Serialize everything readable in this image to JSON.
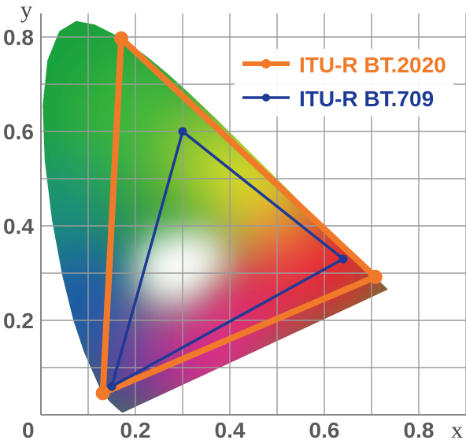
{
  "chart_data": {
    "type": "scatter",
    "xlabel": "x",
    "ylabel": "y",
    "xlim": [
      0,
      0.9
    ],
    "ylim": [
      0,
      0.85
    ],
    "grid": true,
    "origin_label": "0",
    "x_ticks": [
      {
        "value": 0.1,
        "label": ""
      },
      {
        "value": 0.2,
        "label": "0.2"
      },
      {
        "value": 0.3,
        "label": ""
      },
      {
        "value": 0.4,
        "label": "0.4"
      },
      {
        "value": 0.5,
        "label": ""
      },
      {
        "value": 0.6,
        "label": "0.6"
      },
      {
        "value": 0.7,
        "label": ""
      },
      {
        "value": 0.8,
        "label": "0.8"
      },
      {
        "value": 0.9,
        "label": ""
      }
    ],
    "y_ticks": [
      {
        "value": 0.1,
        "label": ""
      },
      {
        "value": 0.2,
        "label": "0.2"
      },
      {
        "value": 0.3,
        "label": ""
      },
      {
        "value": 0.4,
        "label": "0.4"
      },
      {
        "value": 0.5,
        "label": ""
      },
      {
        "value": 0.6,
        "label": "0.6"
      },
      {
        "value": 0.7,
        "label": ""
      },
      {
        "value": 0.8,
        "label": "0.8"
      }
    ],
    "legend_position": "top-right",
    "series": [
      {
        "name": "ITU-R BT.2020",
        "color": "#f07a2a",
        "points": [
          {
            "x": 0.708,
            "y": 0.292
          },
          {
            "x": 0.17,
            "y": 0.797
          },
          {
            "x": 0.131,
            "y": 0.046
          }
        ]
      },
      {
        "name": "ITU-R BT.709",
        "color": "#1e3a96",
        "points": [
          {
            "x": 0.64,
            "y": 0.33
          },
          {
            "x": 0.3,
            "y": 0.6
          },
          {
            "x": 0.15,
            "y": 0.06
          }
        ]
      }
    ],
    "locus": [
      [
        0.1741,
        0.005
      ],
      [
        0.1738,
        0.0049
      ],
      [
        0.1733,
        0.0048
      ],
      [
        0.1726,
        0.0048
      ],
      [
        0.1714,
        0.0051
      ],
      [
        0.1689,
        0.0069
      ],
      [
        0.1644,
        0.0109
      ],
      [
        0.1566,
        0.0177
      ],
      [
        0.144,
        0.0297
      ],
      [
        0.1241,
        0.0578
      ],
      [
        0.0913,
        0.1327
      ],
      [
        0.0687,
        0.2007
      ],
      [
        0.0454,
        0.295
      ],
      [
        0.0235,
        0.4127
      ],
      [
        0.0082,
        0.5384
      ],
      [
        0.0039,
        0.6548
      ],
      [
        0.0139,
        0.7502
      ],
      [
        0.0389,
        0.812
      ],
      [
        0.0743,
        0.8338
      ],
      [
        0.1142,
        0.8262
      ],
      [
        0.1547,
        0.8059
      ],
      [
        0.1929,
        0.7816
      ],
      [
        0.2296,
        0.7543
      ],
      [
        0.2658,
        0.7243
      ],
      [
        0.3016,
        0.6923
      ],
      [
        0.3373,
        0.6589
      ],
      [
        0.3731,
        0.6245
      ],
      [
        0.4087,
        0.5896
      ],
      [
        0.4441,
        0.5547
      ],
      [
        0.4788,
        0.5202
      ],
      [
        0.5125,
        0.4866
      ],
      [
        0.5448,
        0.4544
      ],
      [
        0.5752,
        0.4242
      ],
      [
        0.6029,
        0.3965
      ],
      [
        0.627,
        0.3725
      ],
      [
        0.6482,
        0.3514
      ],
      [
        0.6658,
        0.334
      ],
      [
        0.6801,
        0.3197
      ],
      [
        0.6915,
        0.3083
      ],
      [
        0.7006,
        0.2993
      ],
      [
        0.7079,
        0.292
      ],
      [
        0.714,
        0.2859
      ],
      [
        0.719,
        0.2809
      ],
      [
        0.723,
        0.277
      ],
      [
        0.726,
        0.274
      ],
      [
        0.7283,
        0.2717
      ],
      [
        0.73,
        0.27
      ],
      [
        0.7311,
        0.2689
      ],
      [
        0.732,
        0.268
      ],
      [
        0.7327,
        0.2673
      ],
      [
        0.7334,
        0.2666
      ],
      [
        0.734,
        0.266
      ],
      [
        0.7344,
        0.2656
      ],
      [
        0.7346,
        0.2654
      ],
      [
        0.7347,
        0.2653
      ]
    ]
  }
}
